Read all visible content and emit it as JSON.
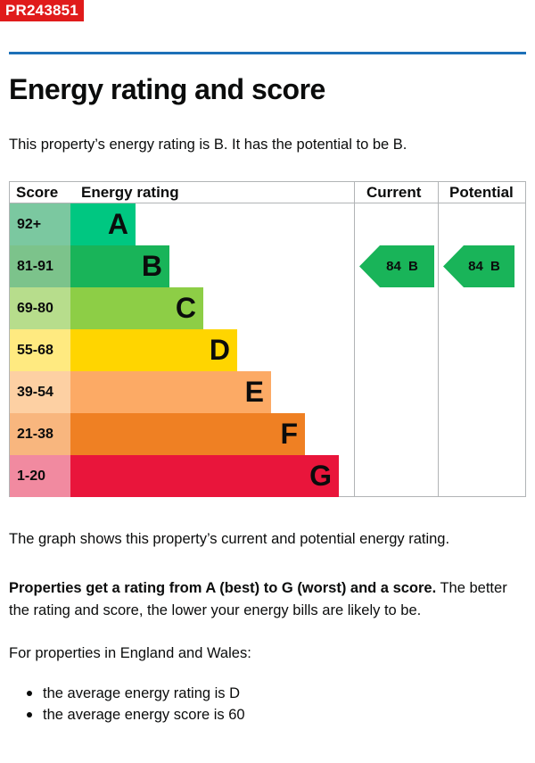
{
  "reference": "PR243851",
  "title": "Energy rating and score",
  "intro": "This property’s energy rating is B. It has the potential to be B.",
  "table": {
    "headers": {
      "score": "Score",
      "rating": "Energy rating",
      "current": "Current",
      "potential": "Potential"
    },
    "bands": [
      {
        "score": "92+",
        "letter": "A",
        "score_color": "#7bc8a0",
        "bar_color": "#00c781"
      },
      {
        "score": "81-91",
        "letter": "B",
        "score_color": "#7cc38b",
        "bar_color": "#19b459"
      },
      {
        "score": "69-80",
        "letter": "C",
        "score_color": "#b7dd8c",
        "bar_color": "#8dce46"
      },
      {
        "score": "55-68",
        "letter": "D",
        "score_color": "#ffea80",
        "bar_color": "#ffd500"
      },
      {
        "score": "39-54",
        "letter": "E",
        "score_color": "#fdd0a3",
        "bar_color": "#fcaa65"
      },
      {
        "score": "21-38",
        "letter": "F",
        "score_color": "#f8b67e",
        "bar_color": "#ef8023"
      },
      {
        "score": "1-20",
        "letter": "G",
        "score_color": "#f18aa0",
        "bar_color": "#e9153b"
      }
    ],
    "current": {
      "label": "84 B",
      "color": "#19b459"
    },
    "potential": {
      "label": "84 B",
      "color": "#19b459"
    }
  },
  "graph_note": "The graph shows this property’s current and potential energy rating.",
  "ratings_note": {
    "bold": "Properties get a rating from A (best) to G (worst) and a score.",
    "rest": " The better the rating and score, the lower your energy bills are likely to be."
  },
  "region_note": "For properties in England and Wales:",
  "averages": [
    "the average energy rating is D",
    "the average energy score is 60"
  ]
}
